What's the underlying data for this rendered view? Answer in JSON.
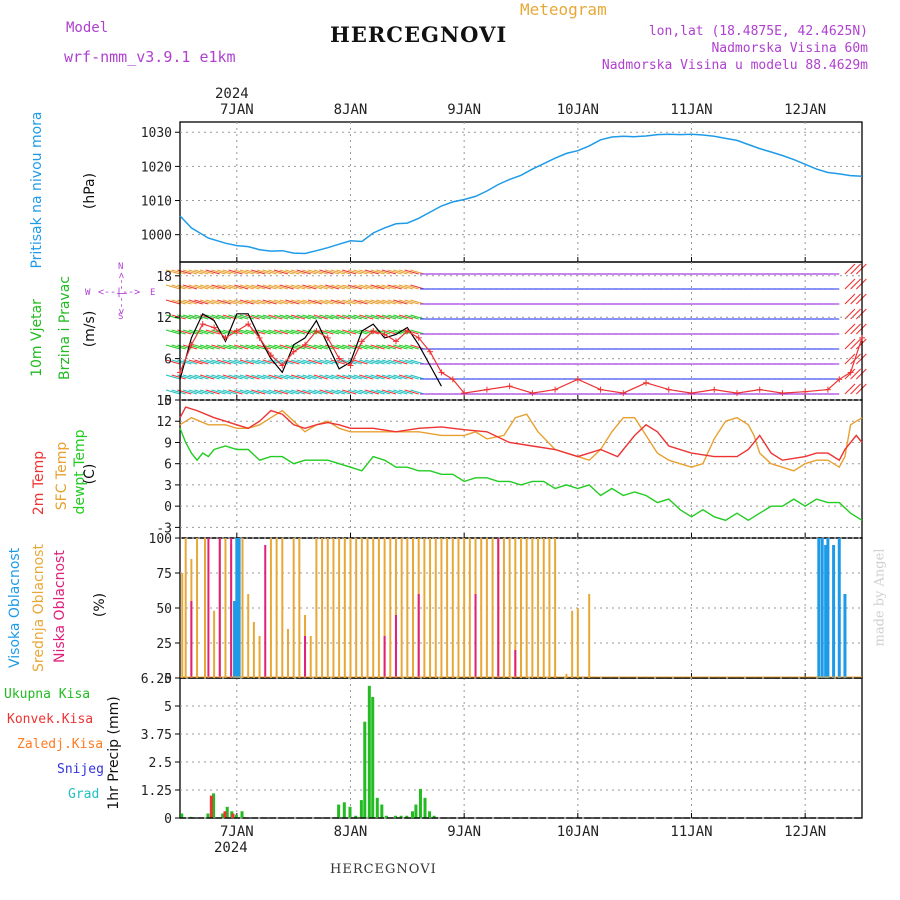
{
  "header": {
    "model_label": "Model",
    "model_name": "wrf-nmm_v3.9.1 e1km",
    "title": "Meteogram",
    "station": "HERCEGNOVI",
    "lonlat": "lon,lat (18.4875E, 42.4625N)",
    "elevation": "Nadmorska Visina 60m",
    "model_elevation": "Nadmorska Visina u modelu 88.4629m",
    "footer_station": "HERCEGNOVI",
    "watermark": "made by Angel"
  },
  "colors": {
    "pressure": "#1e9be8",
    "wind_legend": "#22bb22",
    "temp2m": "#ee3333",
    "sfc": "#e8a030",
    "dewpt": "#22cc22",
    "visoka": "#1e9be8",
    "srednja": "#e8a838",
    "niska": "#e0207a",
    "ukupna": "#22bb22",
    "konvek": "#ee3333",
    "zaledj": "#ff7a20",
    "snijeg": "#3333dd",
    "grad": "#22c0c0",
    "compass": "#b040d0"
  },
  "panel_labels": {
    "pressure": {
      "name": "Pritisak na nivou mora",
      "unit": "(hPa)"
    },
    "wind": {
      "name1": "10m Vjetar",
      "name2": "Brzina i Pravac",
      "unit": "(m/s)"
    },
    "wind_compass": {
      "n": "N",
      "s": "S",
      "w": "W",
      "e": "E",
      "arrow": "<--|-->"
    },
    "temp": {
      "t2m": "2m Temp",
      "sfc": "SFC Temp",
      "dew": "dewpt Temp",
      "unit": "(C)"
    },
    "cloud": {
      "visoka": "Visoka Oblacnost",
      "srednja": "Srednja Oblacnost",
      "niska": "Niska Oblacnost",
      "unit": "(%)"
    },
    "precip": {
      "legend": [
        "Ukupna Kisa",
        "Konvek.Kisa",
        "Zaledj.Kisa",
        "Snijeg",
        "Grad"
      ],
      "unit": "1hr Precip (mm)"
    }
  },
  "chart_data": [
    {
      "type": "line",
      "panel": "pressure",
      "ylim": [
        992,
        1033
      ],
      "yticks": [
        "1000",
        "1010",
        "1020",
        "1030"
      ],
      "x_axis": {
        "year": "2024",
        "ticks": [
          "7JAN",
          "8JAN",
          "9JAN",
          "10JAN",
          "11JAN",
          "12JAN"
        ],
        "range_days": [
          6.5,
          12.5
        ]
      },
      "series": [
        {
          "x": [
            6.5,
            6.6,
            6.75,
            6.9,
            7.0,
            7.1,
            7.2,
            7.3,
            7.4,
            7.5,
            7.6,
            7.7,
            7.8,
            7.9,
            8.0,
            8.1,
            8.2,
            8.3,
            8.4,
            8.5,
            8.6,
            8.7,
            8.8,
            8.9,
            9.0,
            9.1,
            9.2,
            9.3,
            9.4,
            9.5,
            9.6,
            9.7,
            9.8,
            9.9,
            10.0,
            10.1,
            10.2,
            10.3,
            10.4,
            10.5,
            10.6,
            10.7,
            10.8,
            10.9,
            11.0,
            11.1,
            11.2,
            11.3,
            11.4,
            11.5,
            11.6,
            11.7,
            11.8,
            11.9,
            12.0,
            12.1,
            12.2,
            12.3,
            12.4,
            12.5
          ],
          "values": [
            1005.5,
            1002,
            999,
            997.5,
            996.8,
            996.5,
            995.6,
            995.2,
            995.3,
            994.6,
            994.5,
            995.3,
            996.2,
            997.2,
            998.2,
            998,
            1000.5,
            1002,
            1003.2,
            1003.4,
            1004.8,
            1006.6,
            1008.4,
            1009.6,
            1010.3,
            1011.2,
            1012.8,
            1014.7,
            1016.2,
            1017.4,
            1019.2,
            1020.8,
            1022.4,
            1023.8,
            1024.6,
            1026,
            1027.8,
            1028.6,
            1028.8,
            1028.7,
            1028.9,
            1029.3,
            1029.4,
            1029.3,
            1029.4,
            1029.2,
            1028.8,
            1028.2,
            1027.6,
            1026.4,
            1025.2,
            1024.2,
            1023.2,
            1022,
            1020.6,
            1019.2,
            1018.2,
            1017.8,
            1017.3,
            1017.1
          ]
        }
      ]
    },
    {
      "type": "line",
      "panel": "wind",
      "ylim": [
        0,
        20
      ],
      "yticks": [
        "0",
        "6",
        "12",
        "18"
      ],
      "series": [
        {
          "name": "speed",
          "x": [
            6.5,
            6.6,
            6.7,
            6.8,
            6.9,
            7.0,
            7.1,
            7.2,
            7.3,
            7.4,
            7.5,
            7.6,
            7.7,
            7.8,
            7.9,
            8.0,
            8.1,
            8.2,
            8.3,
            8.4,
            8.5,
            8.6,
            8.7,
            8.8
          ],
          "values": [
            3,
            9,
            12.5,
            11.5,
            8.5,
            12.5,
            12.5,
            9,
            6,
            4,
            8,
            9,
            11.5,
            8,
            4.5,
            5.5,
            10,
            11,
            9,
            9.5,
            10.5,
            8,
            5,
            2
          ]
        },
        {
          "name": "gust",
          "x": [
            6.5,
            6.6,
            6.7,
            6.8,
            6.9,
            7.0,
            7.1,
            7.2,
            7.3,
            7.4,
            7.5,
            7.6,
            7.7,
            7.8,
            7.9,
            8.0,
            8.1,
            8.2,
            8.3,
            8.4,
            8.5,
            8.6,
            8.7,
            8.8,
            8.9,
            9.0,
            9.2,
            9.4,
            9.6,
            9.8,
            10.0,
            10.2,
            10.4,
            10.6,
            10.8,
            11.0,
            11.2,
            11.4,
            11.6,
            11.8,
            12.0,
            12.2,
            12.3,
            12.4,
            12.5
          ],
          "values": [
            4,
            8,
            11,
            10.5,
            9,
            10,
            11,
            9,
            6.5,
            5,
            7,
            8,
            10,
            9,
            6,
            5,
            8.5,
            10,
            9.5,
            8.5,
            10,
            9,
            7,
            4,
            3,
            1,
            1.5,
            2,
            1,
            1.5,
            3,
            1.5,
            1,
            2.5,
            1.5,
            1,
            1.5,
            1,
            1.5,
            1,
            1.2,
            1.5,
            3,
            4,
            9
          ]
        }
      ]
    },
    {
      "type": "line",
      "panel": "temperature",
      "ylim": [
        -4.5,
        15
      ],
      "yticks": [
        "15",
        "12",
        "9",
        "6",
        "3",
        "0",
        "-3"
      ],
      "series": [
        {
          "name": "2m Temp",
          "x": [
            6.5,
            6.55,
            6.65,
            6.8,
            6.9,
            7.0,
            7.1,
            7.2,
            7.3,
            7.4,
            7.5,
            7.6,
            7.7,
            7.8,
            7.9,
            8.0,
            8.2,
            8.4,
            8.6,
            8.8,
            9.0,
            9.2,
            9.4,
            9.6,
            9.8,
            10.0,
            10.1,
            10.2,
            10.35,
            10.5,
            10.6,
            10.7,
            10.8,
            11.0,
            11.2,
            11.4,
            11.5,
            11.6,
            11.7,
            11.8,
            12.0,
            12.1,
            12.2,
            12.3,
            12.35,
            12.45,
            12.5
          ],
          "values": [
            12.5,
            14,
            13.5,
            12.5,
            12,
            11.5,
            11,
            12,
            13.5,
            13,
            11.5,
            11,
            11.5,
            11.8,
            11.5,
            11,
            11,
            10.5,
            11,
            11.2,
            10.8,
            10.5,
            9,
            8.5,
            8,
            7,
            7.5,
            8,
            7,
            10,
            11.5,
            10.5,
            8.5,
            7.5,
            7,
            7,
            8,
            10,
            7.5,
            6.5,
            7,
            7.5,
            7.5,
            6.5,
            8,
            10,
            9
          ]
        },
        {
          "name": "SFC Temp",
          "x": [
            6.5,
            6.6,
            6.75,
            6.9,
            7.0,
            7.1,
            7.2,
            7.3,
            7.4,
            7.5,
            7.6,
            7.7,
            7.8,
            7.9,
            8.0,
            8.2,
            8.4,
            8.6,
            8.8,
            9.0,
            9.1,
            9.2,
            9.35,
            9.45,
            9.55,
            9.65,
            9.8,
            10.0,
            10.1,
            10.2,
            10.3,
            10.4,
            10.5,
            10.6,
            10.7,
            10.8,
            10.9,
            11.0,
            11.1,
            11.2,
            11.3,
            11.4,
            11.5,
            11.55,
            11.6,
            11.7,
            11.8,
            11.9,
            12.0,
            12.1,
            12.2,
            12.3,
            12.35,
            12.4,
            12.5
          ],
          "values": [
            11.5,
            12.5,
            11.5,
            11.5,
            11,
            11,
            11.5,
            12.5,
            13.5,
            12,
            10.5,
            11.5,
            12,
            11,
            10.5,
            10.5,
            10.5,
            10.5,
            10,
            10,
            10.5,
            9.5,
            10,
            12.5,
            13,
            10.5,
            8,
            7,
            6.5,
            8,
            10.5,
            12.5,
            12.5,
            10,
            7.5,
            6.5,
            6,
            5.5,
            6,
            9.5,
            12,
            12.5,
            11.5,
            10,
            7.5,
            6,
            5.5,
            5,
            6,
            6.5,
            6.5,
            5.5,
            7,
            11.5,
            12.5
          ]
        },
        {
          "name": "dewpt Temp",
          "x": [
            6.5,
            6.55,
            6.6,
            6.65,
            6.7,
            6.75,
            6.8,
            6.9,
            7.0,
            7.1,
            7.2,
            7.3,
            7.4,
            7.5,
            7.6,
            7.7,
            7.8,
            7.9,
            8.0,
            8.1,
            8.2,
            8.3,
            8.4,
            8.5,
            8.6,
            8.7,
            8.8,
            8.9,
            9.0,
            9.1,
            9.2,
            9.3,
            9.4,
            9.5,
            9.6,
            9.7,
            9.8,
            9.9,
            10.0,
            10.1,
            10.2,
            10.3,
            10.4,
            10.5,
            10.6,
            10.7,
            10.8,
            10.9,
            11.0,
            11.1,
            11.2,
            11.3,
            11.4,
            11.5,
            11.6,
            11.7,
            11.8,
            11.9,
            12.0,
            12.1,
            12.2,
            12.3,
            12.4,
            12.5
          ],
          "values": [
            11,
            9,
            7.5,
            6.5,
            7.5,
            7,
            8,
            8.5,
            8,
            8,
            6.5,
            7,
            7,
            6,
            6.5,
            6.5,
            6.5,
            6,
            5.5,
            5,
            7,
            6.5,
            5.5,
            5.5,
            5,
            5,
            4.5,
            4.5,
            3.5,
            4,
            4,
            3.5,
            3.5,
            3,
            3.5,
            3.5,
            2.5,
            3,
            2.5,
            3,
            1.5,
            2.5,
            1.5,
            2,
            1.5,
            0.5,
            1,
            -0.5,
            -1.5,
            -0.5,
            -1.5,
            -2,
            -1,
            -2,
            -1,
            0,
            0,
            1,
            0,
            1,
            0.5,
            0.5,
            -1,
            -2
          ]
        }
      ]
    },
    {
      "type": "bar",
      "panel": "cloud",
      "ylim": [
        0,
        100
      ],
      "yticks": [
        "0",
        "25",
        "50",
        "75",
        "100"
      ],
      "series": [
        {
          "name": "Srednja Oblacnost",
          "x": [
            6.52,
            6.55,
            6.6,
            6.65,
            6.72,
            6.8,
            6.85,
            6.9,
            6.95,
            7.05,
            7.1,
            7.15,
            7.2,
            7.3,
            7.35,
            7.4,
            7.45,
            7.5,
            7.55,
            7.6,
            7.65,
            7.7,
            7.75,
            7.8,
            7.85,
            7.9,
            7.95,
            8.0,
            8.05,
            8.1,
            8.15,
            8.2,
            8.25,
            8.3,
            8.35,
            8.4,
            8.45,
            8.5,
            8.55,
            8.6,
            8.65,
            8.7,
            8.75,
            8.8,
            8.85,
            8.9,
            8.95,
            9.0,
            9.05,
            9.1,
            9.15,
            9.2,
            9.25,
            9.3,
            9.35,
            9.4,
            9.45,
            9.5,
            9.55,
            9.6,
            9.65,
            9.7,
            9.75,
            9.8,
            9.9,
            9.95,
            10.0,
            10.1
          ],
          "values": [
            75,
            100,
            85,
            100,
            100,
            48,
            100,
            100,
            95,
            100,
            60,
            40,
            30,
            100,
            100,
            100,
            35,
            100,
            100,
            45,
            30,
            100,
            100,
            100,
            100,
            100,
            100,
            100,
            100,
            100,
            100,
            100,
            100,
            100,
            100,
            100,
            100,
            100,
            100,
            100,
            100,
            100,
            100,
            100,
            100,
            100,
            100,
            100,
            100,
            100,
            100,
            100,
            100,
            100,
            100,
            100,
            100,
            100,
            100,
            100,
            100,
            100,
            100,
            100,
            3,
            48,
            50,
            60
          ]
        },
        {
          "name": "Visoka Oblacnost",
          "x": [
            6.98,
            7.0,
            7.02,
            12.12,
            12.15,
            12.18,
            12.2,
            12.25,
            12.3,
            12.35
          ],
          "values": [
            55,
            100,
            100,
            100,
            100,
            95,
            100,
            95,
            100,
            60
          ]
        },
        {
          "name": "Niska Oblacnost",
          "x": [
            6.6,
            6.75,
            6.85,
            6.95,
            7.25,
            7.6,
            8.3,
            8.4,
            8.6,
            9.1,
            9.3,
            9.45
          ],
          "values": [
            55,
            100,
            100,
            100,
            95,
            30,
            30,
            45,
            60,
            60,
            100,
            20
          ]
        }
      ]
    },
    {
      "type": "bar",
      "panel": "precip",
      "ylim": [
        0,
        6.25
      ],
      "yticks": [
        "0",
        "1.25",
        "2.5",
        "3.75",
        "5",
        "6.25"
      ],
      "series": [
        {
          "name": "Ukupna Kisa",
          "x": [
            6.52,
            6.6,
            6.75,
            6.8,
            6.88,
            6.92,
            6.96,
            7.0,
            7.05,
            7.9,
            7.95,
            8.0,
            8.05,
            8.1,
            8.13,
            8.17,
            8.2,
            8.24,
            8.28,
            8.32,
            8.4,
            8.45,
            8.5,
            8.55,
            8.58,
            8.62,
            8.66,
            8.7,
            8.74
          ],
          "values": [
            0.2,
            0.05,
            0.2,
            1.1,
            0.2,
            0.5,
            0.3,
            0.15,
            0.3,
            0.6,
            0.7,
            0.5,
            0.1,
            0.8,
            4.3,
            5.9,
            5.4,
            0.9,
            0.6,
            0.1,
            0.1,
            0.1,
            0.1,
            0.3,
            0.6,
            1.3,
            0.9,
            0.3,
            0.1
          ]
        },
        {
          "name": "Konvek.Kisa",
          "x": [
            6.78,
            6.9,
            6.97
          ],
          "values": [
            1.0,
            0.3,
            0.2
          ]
        }
      ]
    }
  ]
}
